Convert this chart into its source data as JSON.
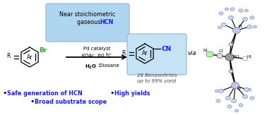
{
  "bg_color": "#ffffff",
  "box_color_top": "#aed6f1",
  "box_color_product": "#c5e3f5",
  "hcn_color": "#1a1aff",
  "br_color": "#22aa22",
  "cn_color": "#1a1aff",
  "bullet_color": "#1a1aff",
  "bullets_left": [
    "Safe generation of HCN",
    "Broad substrate scope"
  ],
  "bullet_right": "High yields",
  "arrow_color": "#000000",
  "pd_color": "#999999",
  "p_atom_color": "#c0c8e8",
  "p_atom_edge": "#7070aa",
  "n_atom_color": "#b8f0b0",
  "n_atom_edge": "#449944",
  "c_atom_color": "#dddddd",
  "c_atom_edge": "#555555",
  "h_atom_color": "#ffffff",
  "h_atom_edge": "#888888",
  "small_atom_color": "#c8d8f0",
  "small_atom_edge": "#8888bb"
}
